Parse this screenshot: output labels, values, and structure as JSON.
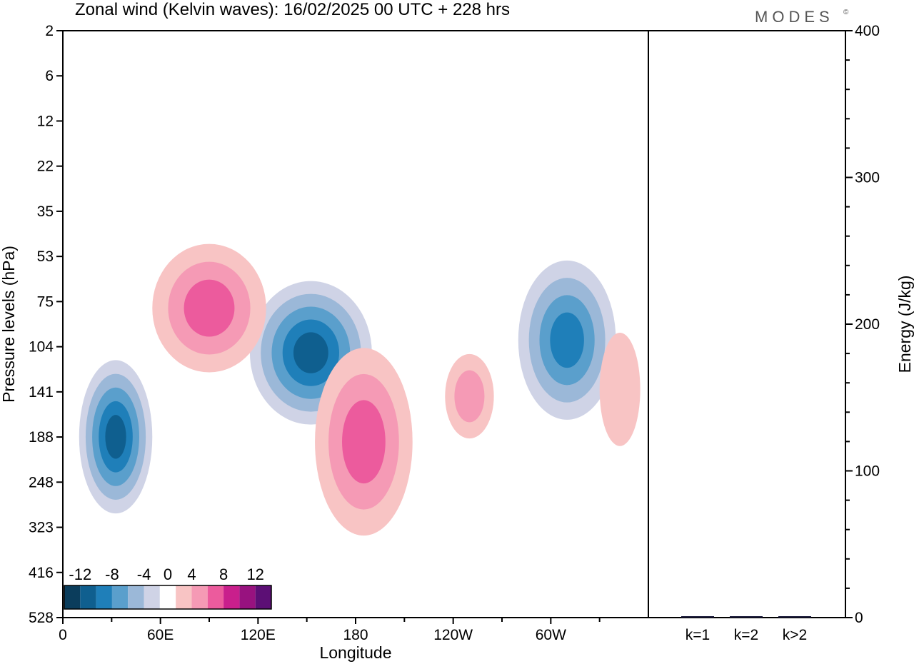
{
  "title": "Zonal wind (Kelvin waves):  16/02/2025  00 UTC  + 228 hrs",
  "brand": "MODES",
  "brand_mark": "©",
  "chart_data": [
    {
      "type": "heatmap",
      "title": "Zonal wind (Kelvin waves):  16/02/2025  00 UTC  + 228 hrs",
      "xlabel": "Longitude",
      "ylabel": "Pressure levels (hPa)",
      "x_tick_labels": [
        "0",
        "60E",
        "120E",
        "180",
        "120W",
        "60W"
      ],
      "x_tick_degrees": [
        0,
        60,
        120,
        180,
        240,
        300
      ],
      "xlim": [
        0,
        360
      ],
      "y_tick_labels": [
        "2",
        "6",
        "12",
        "22",
        "35",
        "53",
        "75",
        "104",
        "141",
        "188",
        "248",
        "323",
        "416",
        "528"
      ],
      "colorbar": {
        "labels": [
          "-12",
          "-8",
          "-4",
          "0",
          "4",
          "8",
          "12"
        ],
        "levels": [
          -14,
          -12,
          -10,
          -8,
          -6,
          -4,
          -2,
          2,
          4,
          6,
          8,
          10,
          12,
          14
        ],
        "colors": [
          "#0b3d5c",
          "#0f5f8f",
          "#1f7fb9",
          "#5a9fcc",
          "#9bb8d8",
          "#cfd3e6",
          "#ffffff",
          "#f8c4c4",
          "#f59ab5",
          "#ec5b9d",
          "#c91f8c",
          "#98127f",
          "#5c0f75"
        ]
      },
      "anomalies": [
        {
          "sign": "negative",
          "lon": [
            10,
            55
          ],
          "pressure": [
            115,
            300
          ],
          "peak": -10
        },
        {
          "sign": "negative",
          "lon": [
            115,
            190
          ],
          "pressure": [
            65,
            175
          ],
          "peak": -10
        },
        {
          "sign": "negative",
          "lon": [
            280,
            340
          ],
          "pressure": [
            55,
            170
          ],
          "peak": -8
        },
        {
          "sign": "positive",
          "lon": [
            155,
            215
          ],
          "pressure": [
            105,
            340
          ],
          "peak": 6
        },
        {
          "sign": "positive",
          "lon": [
            55,
            125
          ],
          "pressure": [
            48,
            125
          ],
          "peak": 6
        },
        {
          "sign": "positive",
          "lon": [
            235,
            265
          ],
          "pressure": [
            110,
            190
          ],
          "peak": 4
        },
        {
          "sign": "positive",
          "lon": [
            330,
            355
          ],
          "pressure": [
            95,
            200
          ],
          "peak": 2
        }
      ]
    },
    {
      "type": "bar",
      "ylabel": "Energy (J/kg)",
      "categories": [
        "k=1",
        "k=2",
        "k>2"
      ],
      "values": [
        0.5,
        0.3,
        0.8
      ],
      "ylim": [
        0,
        400
      ],
      "y_tick_labels": [
        "0",
        "100",
        "200",
        "300",
        "400"
      ]
    }
  ]
}
